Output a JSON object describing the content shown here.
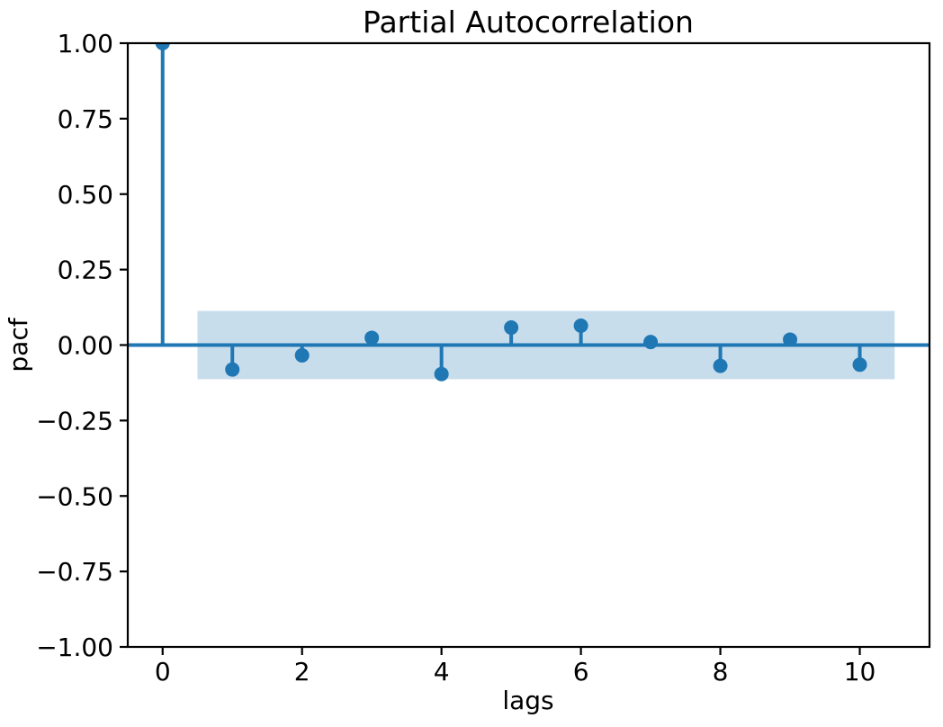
{
  "chart_data": {
    "type": "stem",
    "title": "Partial Autocorrelation",
    "xlabel": "lags",
    "ylabel": "pacf",
    "x": [
      0,
      1,
      2,
      3,
      4,
      5,
      6,
      7,
      8,
      9,
      10
    ],
    "values": [
      1.0,
      -0.081,
      -0.034,
      0.024,
      -0.096,
      0.058,
      0.064,
      0.01,
      -0.069,
      0.018,
      -0.065
    ],
    "xlim": [
      -0.5,
      11.0
    ],
    "ylim": [
      -1.0,
      1.0
    ],
    "xticks": [
      0,
      2,
      4,
      6,
      8,
      10
    ],
    "xtick_labels": [
      "0",
      "2",
      "4",
      "6",
      "8",
      "10"
    ],
    "yticks": [
      1.0,
      0.75,
      0.5,
      0.25,
      0.0,
      -0.25,
      -0.5,
      -0.75,
      -1.0
    ],
    "ytick_labels": [
      "1.00",
      "0.75",
      "0.50",
      "0.25",
      "0.00",
      "−0.25",
      "−0.50",
      "−0.75",
      "−1.00"
    ],
    "confidence_band": {
      "x_start": 0.5,
      "x_end": 10.5,
      "low": -0.113,
      "high": 0.113
    },
    "zero_line": 0.0,
    "grid": false,
    "legend": null,
    "colors": {
      "stem": "#1f77b4",
      "marker": "#1f77b4",
      "band": "#1f77b4",
      "band_opacity": 0.25,
      "axis": "#000000",
      "background": "#ffffff"
    }
  }
}
